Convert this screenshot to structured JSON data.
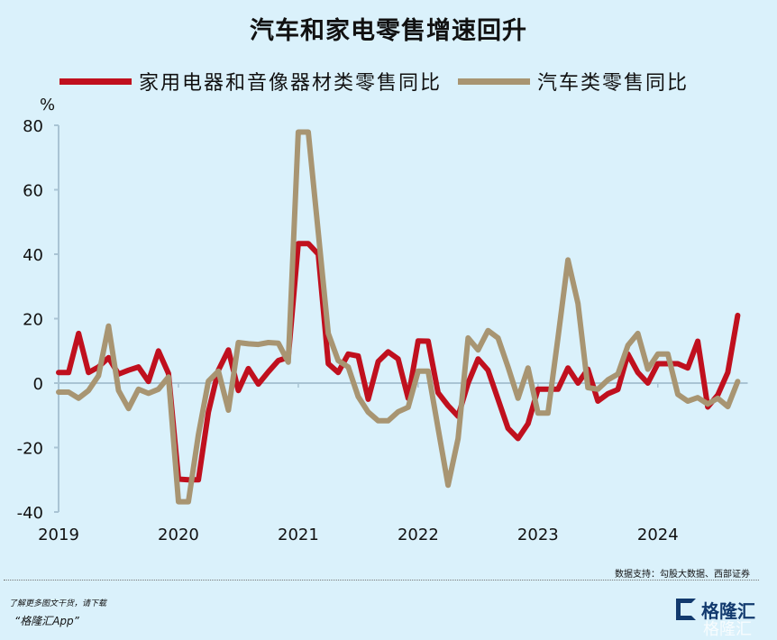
{
  "title": "汽车和家电零售增速回升",
  "footer": {
    "source": "数据支持：勾股大数据、西部证券",
    "promo_line1": "了解更多图文干货，请下载",
    "promo_line2": "“格隆汇App”",
    "logo_text": "格隆汇"
  },
  "colors": {
    "background": "#daf1fb",
    "appliances": "#c0101e",
    "autos": "#a89572",
    "axis": "#a9c4d4"
  },
  "chart_data": {
    "type": "line",
    "title": "汽车和家电零售增速回升",
    "ylabel": "%",
    "ylim": [
      -40,
      80
    ],
    "yticks": [
      "80",
      "60",
      "40",
      "20",
      "0",
      "-20",
      "-40"
    ],
    "xticks": [
      "2019",
      "2020",
      "2021",
      "2022",
      "2023",
      "2024"
    ],
    "grid": "zero line only",
    "legend": "top",
    "series": [
      {
        "name": "家用电器和音像器材类零售同比",
        "color": "#c0101e",
        "points": [
          [
            "2019-01",
            3.3
          ],
          [
            "2019-02",
            3.3
          ],
          [
            "2019-03",
            15.4
          ],
          [
            "2019-04",
            3.3
          ],
          [
            "2019-05",
            5
          ],
          [
            "2019-06",
            7.9
          ],
          [
            "2019-07",
            2.8
          ],
          [
            "2019-08",
            4
          ],
          [
            "2019-09",
            5
          ],
          [
            "2019-10",
            0.5
          ],
          [
            "2019-11",
            10
          ],
          [
            "2019-12",
            3
          ],
          [
            "2020-01",
            -29.8
          ],
          [
            "2020-02",
            -30
          ],
          [
            "2020-03",
            -30
          ],
          [
            "2020-04",
            -9
          ],
          [
            "2020-05",
            4
          ],
          [
            "2020-06",
            10.3
          ],
          [
            "2020-07",
            -2.3
          ],
          [
            "2020-08",
            4.5
          ],
          [
            "2020-09",
            -0.3
          ],
          [
            "2020-10",
            3.5
          ],
          [
            "2020-11",
            7
          ],
          [
            "2020-12",
            8
          ],
          [
            "2021-01",
            43.3
          ],
          [
            "2021-02",
            43.3
          ],
          [
            "2021-03",
            40
          ],
          [
            "2021-04",
            6
          ],
          [
            "2021-05",
            3.3
          ],
          [
            "2021-06",
            9
          ],
          [
            "2021-07",
            8.4
          ],
          [
            "2021-08",
            -5
          ],
          [
            "2021-09",
            6.7
          ],
          [
            "2021-10",
            9.7
          ],
          [
            "2021-11",
            7.5
          ],
          [
            "2021-12",
            -4.7
          ],
          [
            "2022-01",
            13.1
          ],
          [
            "2022-02",
            13
          ],
          [
            "2022-03",
            -3
          ],
          [
            "2022-04",
            -7
          ],
          [
            "2022-05",
            -10.3
          ],
          [
            "2022-06",
            0
          ],
          [
            "2022-07",
            7.5
          ],
          [
            "2022-08",
            4
          ],
          [
            "2022-09",
            -5
          ],
          [
            "2022-10",
            -14
          ],
          [
            "2022-11",
            -17.2
          ],
          [
            "2022-12",
            -12.6
          ],
          [
            "2023-01",
            -1.9
          ],
          [
            "2023-02",
            -1.9
          ],
          [
            "2023-03",
            -1.9
          ],
          [
            "2023-04",
            4.7
          ],
          [
            "2023-05",
            0
          ],
          [
            "2023-06",
            4.3
          ],
          [
            "2023-07",
            -5.6
          ],
          [
            "2023-08",
            -3.3
          ],
          [
            "2023-09",
            -2
          ],
          [
            "2023-10",
            9
          ],
          [
            "2023-11",
            3.3
          ],
          [
            "2023-12",
            0
          ],
          [
            "2024-01",
            6
          ],
          [
            "2024-02",
            6
          ],
          [
            "2024-03",
            6
          ],
          [
            "2024-04",
            4.7
          ],
          [
            "2024-05",
            13
          ],
          [
            "2024-06",
            -7.4
          ],
          [
            "2024-07",
            -3.7
          ],
          [
            "2024-08",
            3.3
          ],
          [
            "2024-09",
            21
          ]
        ]
      },
      {
        "name": "汽车类零售同比",
        "color": "#a89572",
        "points": [
          [
            "2019-01",
            -2.8
          ],
          [
            "2019-02",
            -2.8
          ],
          [
            "2019-03",
            -4.7
          ],
          [
            "2019-04",
            -2.3
          ],
          [
            "2019-05",
            2.3
          ],
          [
            "2019-06",
            17.7
          ],
          [
            "2019-07",
            -2.3
          ],
          [
            "2019-08",
            -7.9
          ],
          [
            "2019-09",
            -1.9
          ],
          [
            "2019-10",
            -3.2
          ],
          [
            "2019-11",
            -1.9
          ],
          [
            "2019-12",
            1.9
          ],
          [
            "2020-01",
            -36.8
          ],
          [
            "2020-02",
            -36.8
          ],
          [
            "2020-03",
            -16
          ],
          [
            "2020-04",
            0.6
          ],
          [
            "2020-05",
            3.7
          ],
          [
            "2020-06",
            -8.4
          ],
          [
            "2020-07",
            12.6
          ],
          [
            "2020-08",
            12.2
          ],
          [
            "2020-09",
            12
          ],
          [
            "2020-10",
            12.6
          ],
          [
            "2020-11",
            12.4
          ],
          [
            "2020-12",
            6.5
          ],
          [
            "2021-01",
            77.9
          ],
          [
            "2021-02",
            77.9
          ],
          [
            "2021-03",
            46.7
          ],
          [
            "2021-04",
            15.4
          ],
          [
            "2021-05",
            7
          ],
          [
            "2021-06",
            5
          ],
          [
            "2021-07",
            -4.2
          ],
          [
            "2021-08",
            -9
          ],
          [
            "2021-09",
            -11.7
          ],
          [
            "2021-10",
            -11.7
          ],
          [
            "2021-11",
            -8.9
          ],
          [
            "2021-12",
            -7.5
          ],
          [
            "2022-01",
            3.7
          ],
          [
            "2022-02",
            3.7
          ],
          [
            "2022-03",
            -14
          ],
          [
            "2022-04",
            -31.7
          ],
          [
            "2022-05",
            -17.2
          ],
          [
            "2022-06",
            14
          ],
          [
            "2022-07",
            10.3
          ],
          [
            "2022-08",
            16.3
          ],
          [
            "2022-09",
            14
          ],
          [
            "2022-10",
            5
          ],
          [
            "2022-11",
            -4.7
          ],
          [
            "2022-12",
            4.7
          ],
          [
            "2023-01",
            -9.3
          ],
          [
            "2023-02",
            -9.3
          ],
          [
            "2023-03",
            14
          ],
          [
            "2023-04",
            38.2
          ],
          [
            "2023-05",
            24.7
          ],
          [
            "2023-06",
            -1.4
          ],
          [
            "2023-07",
            -1.9
          ],
          [
            "2023-08",
            1
          ],
          [
            "2023-09",
            2.8
          ],
          [
            "2023-10",
            11.7
          ],
          [
            "2023-11",
            15.4
          ],
          [
            "2023-12",
            4.3
          ],
          [
            "2024-01",
            9
          ],
          [
            "2024-02",
            9
          ],
          [
            "2024-03",
            -3.5
          ],
          [
            "2024-04",
            -5.6
          ],
          [
            "2024-05",
            -4.5
          ],
          [
            "2024-06",
            -6.5
          ],
          [
            "2024-07",
            -4.7
          ],
          [
            "2024-08",
            -7.3
          ],
          [
            "2024-09",
            0.5
          ]
        ]
      }
    ]
  }
}
